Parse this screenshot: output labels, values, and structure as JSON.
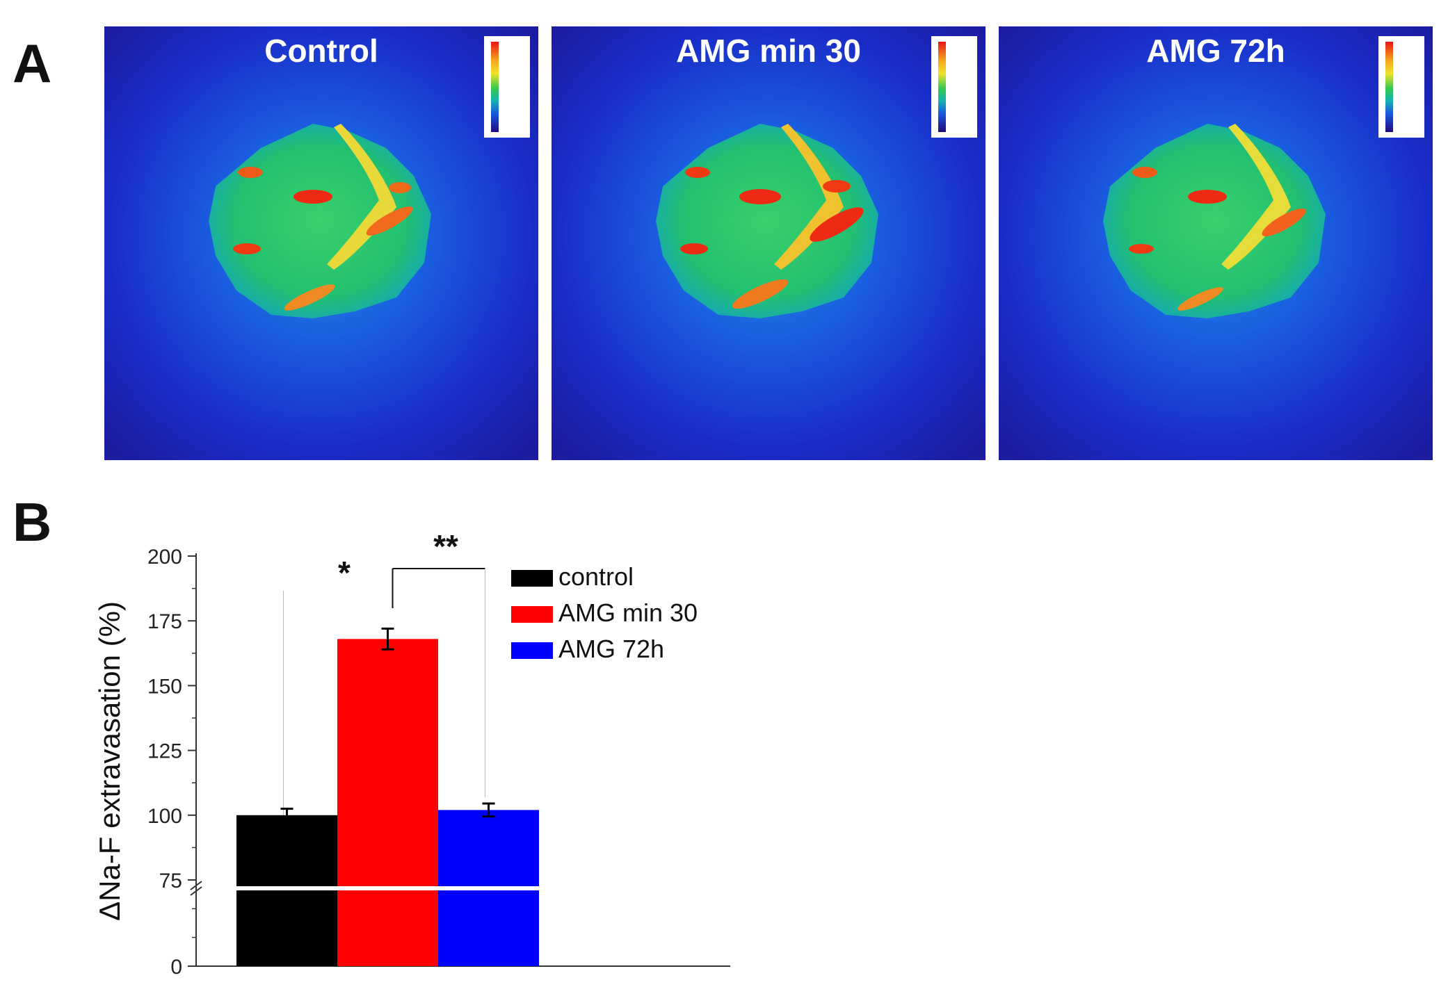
{
  "panels": {
    "a_label": "A",
    "b_label": "B"
  },
  "images": [
    {
      "title": "Control"
    },
    {
      "title": "AMG min 30"
    },
    {
      "title": "AMG 72h"
    }
  ],
  "chart_data": {
    "type": "bar",
    "categories": [
      "control",
      "AMG min 30",
      "AMG 72h"
    ],
    "values": [
      100,
      168,
      102
    ],
    "errors": [
      2.5,
      4,
      2.5
    ],
    "colors": [
      "#000000",
      "#ff0000",
      "#0000ff"
    ],
    "title": "",
    "xlabel": "",
    "ylabel": "ΔNa-F extravasation (%)",
    "yticks": [
      "0",
      "75",
      "100",
      "125",
      "150",
      "175",
      "200"
    ],
    "axis_break": "between 0 and 75",
    "legend": [
      "control",
      "AMG min 30",
      "AMG 72h"
    ],
    "legend_position": "top-right",
    "annotations": [
      "*",
      "**"
    ]
  }
}
